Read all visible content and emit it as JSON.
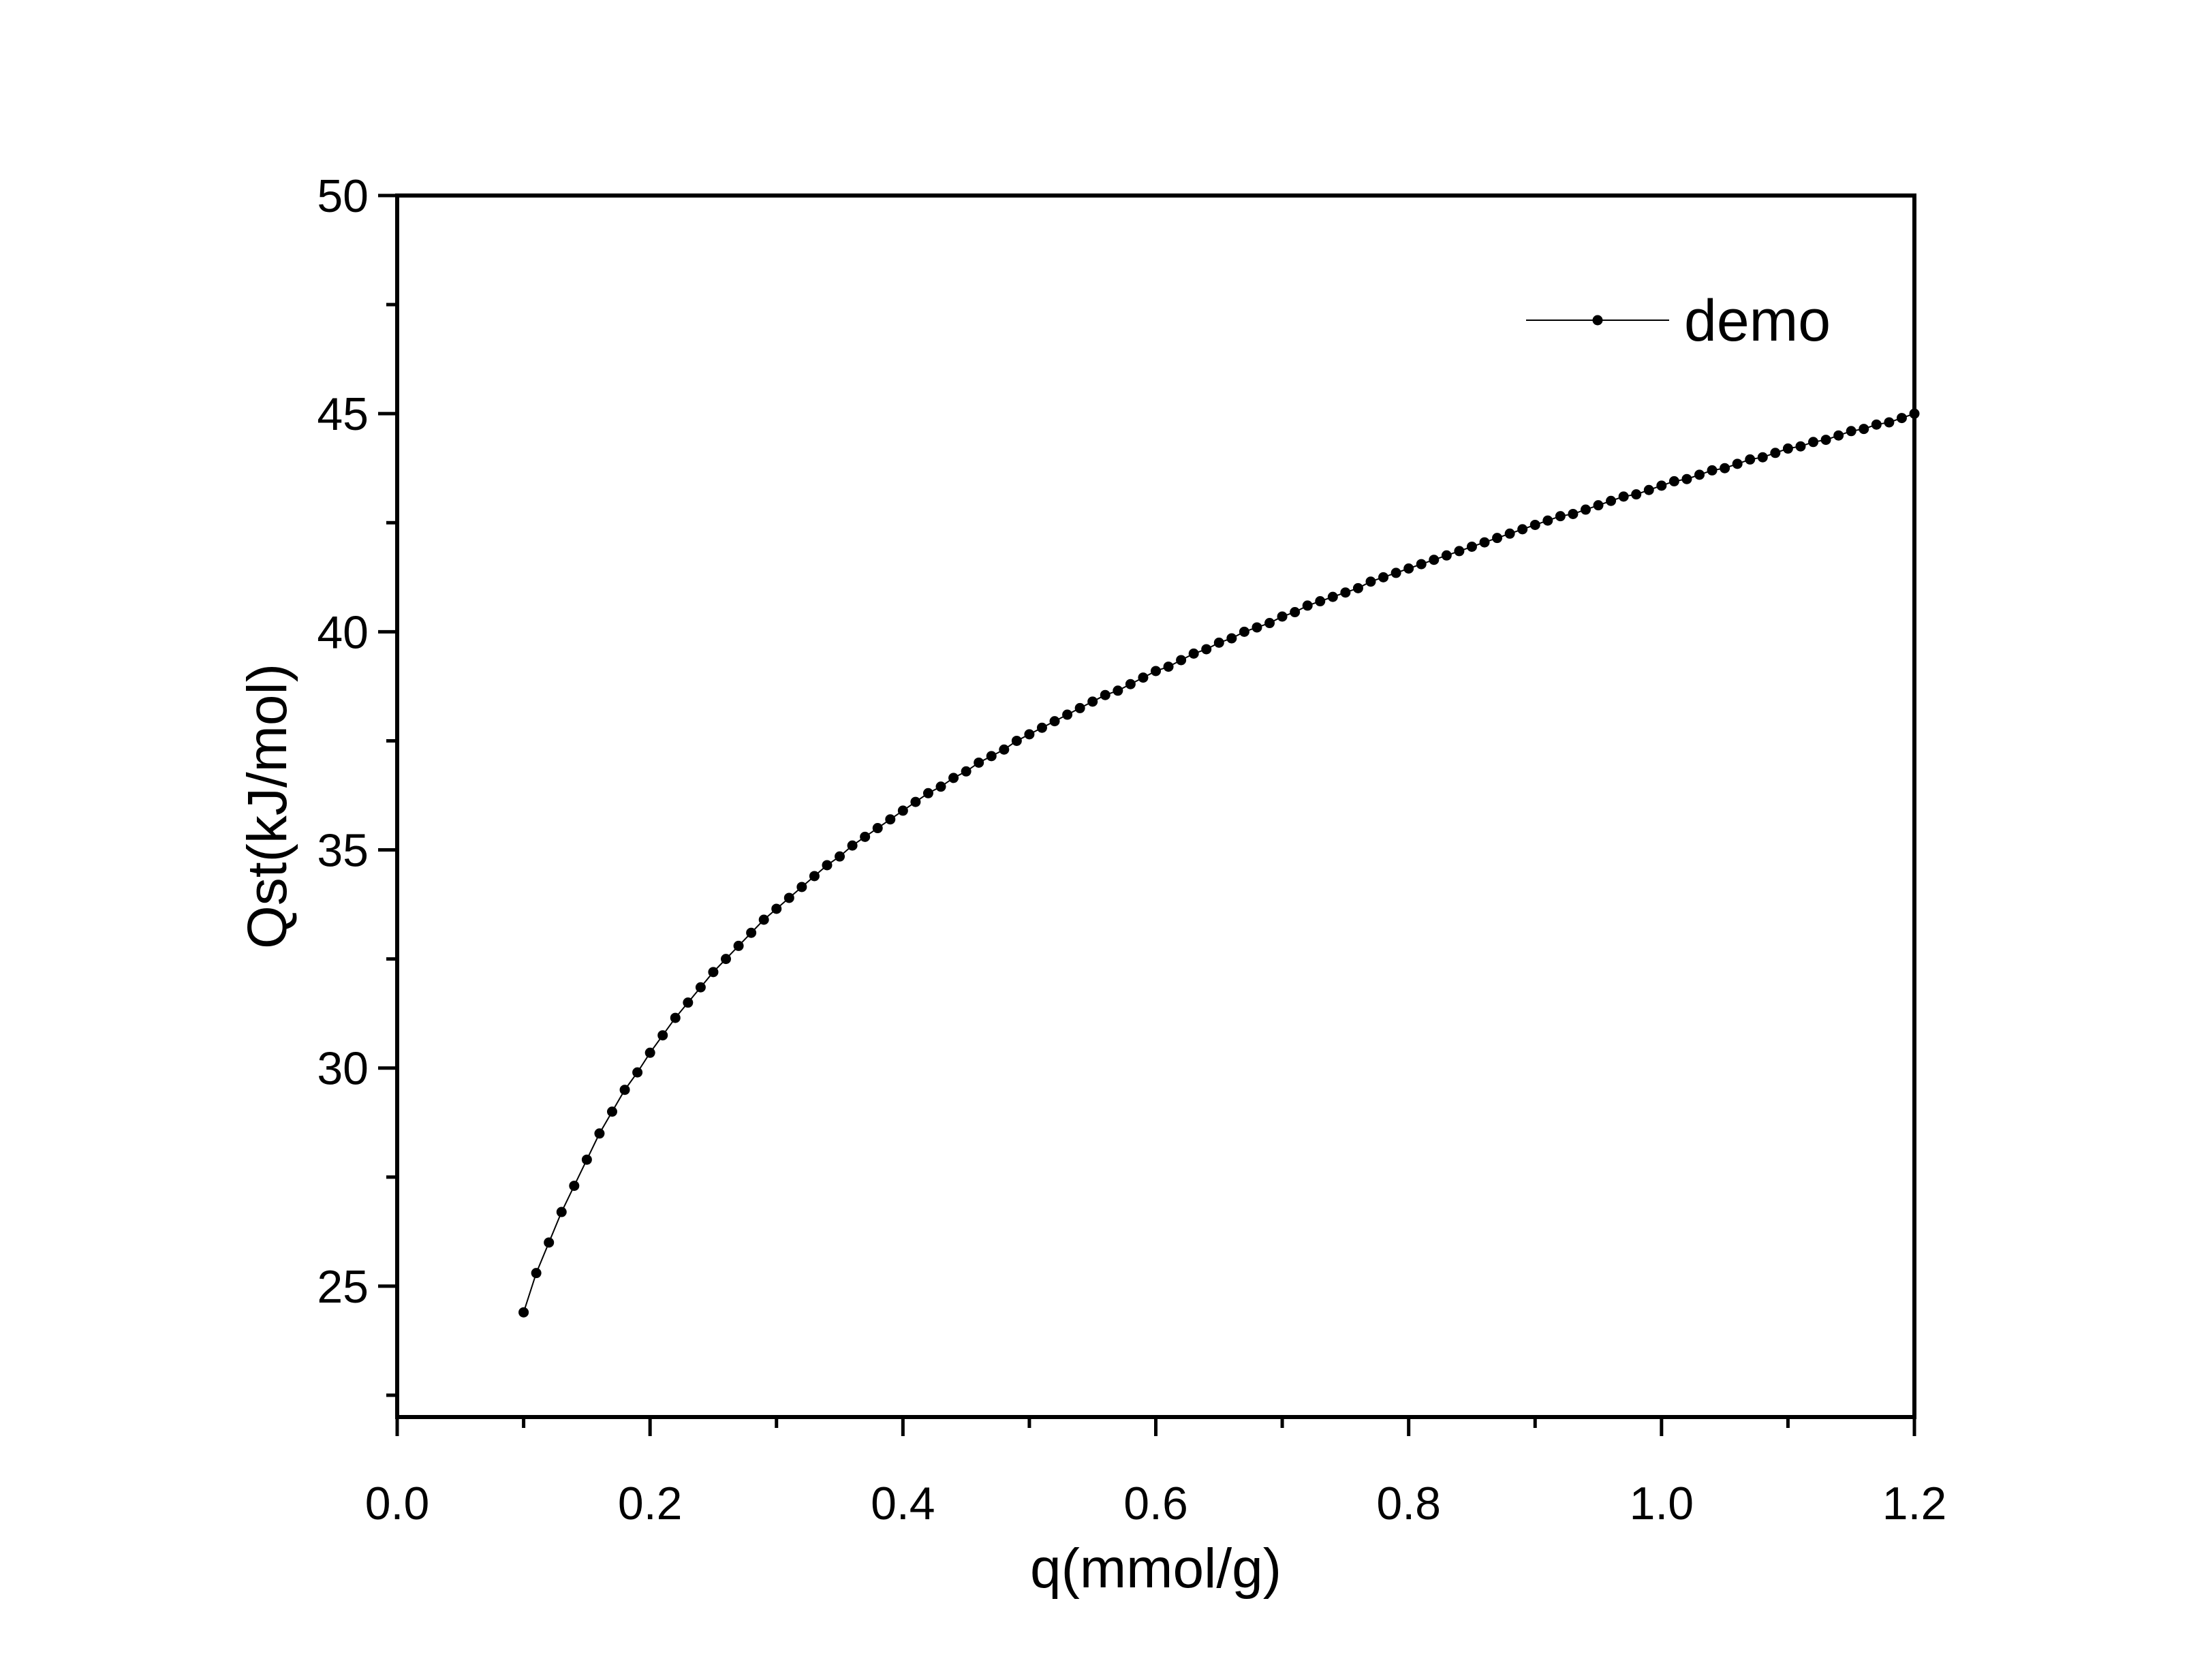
{
  "chart_data": {
    "type": "line",
    "xlabel": "q(mmol/g)",
    "ylabel": "Qst(kJ/mol)",
    "xlim": [
      0.0,
      1.2
    ],
    "ylim": [
      22,
      50
    ],
    "x_ticks": [
      0.0,
      0.2,
      0.4,
      0.6,
      0.8,
      1.0,
      1.2
    ],
    "x_tick_labels": [
      "0.0",
      "0.2",
      "0.4",
      "0.6",
      "0.8",
      "1.0",
      "1.2"
    ],
    "x_minor_ticks": [
      0.1,
      0.3,
      0.5,
      0.7,
      0.9,
      1.1
    ],
    "y_ticks": [
      25,
      30,
      35,
      40,
      45,
      50
    ],
    "y_tick_labels": [
      "25",
      "30",
      "35",
      "40",
      "45",
      "50"
    ],
    "y_minor_ticks": [
      22.5,
      27.5,
      32.5,
      37.5,
      42.5,
      47.5
    ],
    "grid": false,
    "legend_position": "top-right",
    "series": [
      {
        "name": "demo",
        "color": "#000000",
        "marker": "circle",
        "x": [
          0.1,
          0.11,
          0.12,
          0.13,
          0.14,
          0.15,
          0.16,
          0.17,
          0.18,
          0.19,
          0.2,
          0.21,
          0.22,
          0.23,
          0.24,
          0.25,
          0.26,
          0.27,
          0.28,
          0.29,
          0.3,
          0.31,
          0.32,
          0.33,
          0.34,
          0.35,
          0.36,
          0.37,
          0.38,
          0.39,
          0.4,
          0.41,
          0.42,
          0.43,
          0.44,
          0.45,
          0.46,
          0.47,
          0.48,
          0.49,
          0.5,
          0.51,
          0.52,
          0.53,
          0.54,
          0.55,
          0.56,
          0.57,
          0.58,
          0.59,
          0.6,
          0.61,
          0.62,
          0.63,
          0.64,
          0.65,
          0.66,
          0.67,
          0.68,
          0.69,
          0.7,
          0.71,
          0.72,
          0.73,
          0.74,
          0.75,
          0.76,
          0.77,
          0.78,
          0.79,
          0.8,
          0.81,
          0.82,
          0.83,
          0.84,
          0.85,
          0.86,
          0.87,
          0.88,
          0.89,
          0.9,
          0.91,
          0.92,
          0.93,
          0.94,
          0.95,
          0.96,
          0.97,
          0.98,
          0.99,
          1.0,
          1.01,
          1.02,
          1.03,
          1.04,
          1.05,
          1.06,
          1.07,
          1.08,
          1.09,
          1.1,
          1.11,
          1.12,
          1.13,
          1.14,
          1.15,
          1.16,
          1.17,
          1.18,
          1.19,
          1.2
        ],
        "y": [
          24.4,
          25.3,
          26.0,
          26.7,
          27.3,
          27.9,
          28.5,
          29.0,
          29.5,
          29.9,
          30.35,
          30.75,
          31.15,
          31.5,
          31.85,
          32.2,
          32.5,
          32.8,
          33.1,
          33.4,
          33.65,
          33.9,
          34.15,
          34.4,
          34.65,
          34.85,
          35.1,
          35.3,
          35.5,
          35.7,
          35.9,
          36.1,
          36.3,
          36.45,
          36.65,
          36.8,
          37.0,
          37.15,
          37.3,
          37.5,
          37.65,
          37.8,
          37.95,
          38.1,
          38.25,
          38.4,
          38.55,
          38.65,
          38.8,
          38.95,
          39.1,
          39.2,
          39.35,
          39.5,
          39.6,
          39.75,
          39.85,
          40.0,
          40.1,
          40.2,
          40.35,
          40.45,
          40.6,
          40.7,
          40.8,
          40.9,
          41.0,
          41.15,
          41.25,
          41.35,
          41.45,
          41.55,
          41.65,
          41.75,
          41.85,
          41.95,
          42.05,
          42.15,
          42.25,
          42.35,
          42.45,
          42.55,
          42.65,
          42.7,
          42.8,
          42.9,
          43.0,
          43.1,
          43.15,
          43.25,
          43.35,
          43.45,
          43.5,
          43.6,
          43.7,
          43.75,
          43.85,
          43.95,
          44.0,
          44.1,
          44.2,
          44.25,
          44.35,
          44.4,
          44.5,
          44.6,
          44.65,
          44.75,
          44.8,
          44.9,
          45.0
        ]
      }
    ]
  }
}
